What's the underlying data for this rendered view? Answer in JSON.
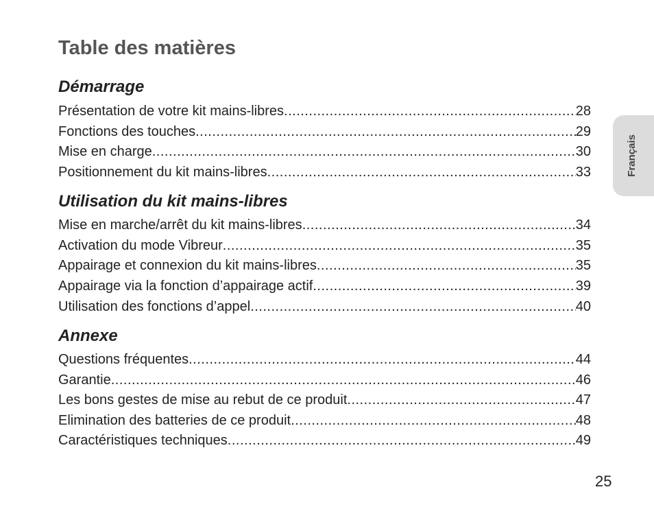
{
  "title": "Table des matières",
  "side_tab": "Français",
  "page_number": "25",
  "sections": [
    {
      "heading": "Démarrage",
      "entries": [
        {
          "label": "Présentation de votre kit mains-libres",
          "page": "28"
        },
        {
          "label": "Fonctions des touches",
          "page": "29"
        },
        {
          "label": "Mise en charge",
          "page": "30"
        },
        {
          "label": "Positionnement du kit mains-libres",
          "page": "33"
        }
      ]
    },
    {
      "heading": "Utilisation du kit mains-libres",
      "entries": [
        {
          "label": "Mise en marche/arrêt du kit mains-libres",
          "page": "34"
        },
        {
          "label": "Activation du mode Vibreur",
          "page": "35"
        },
        {
          "label": "Appairage et connexion du kit mains-libres",
          "page": "35"
        },
        {
          "label": "Appairage via la fonction d’appairage actif",
          "page": "39"
        },
        {
          "label": "Utilisation des fonctions d’appel",
          "page": "40"
        }
      ]
    },
    {
      "heading": "Annexe",
      "entries": [
        {
          "label": "Questions fréquentes",
          "page": "44"
        },
        {
          "label": "Garantie",
          "page": "46"
        },
        {
          "label": "Les bons gestes de mise au rebut de ce produit",
          "page": "47"
        },
        {
          "label": "Elimination des batteries de ce produit",
          "page": "48"
        },
        {
          "label": "Caractéristiques techniques",
          "page": "49"
        }
      ]
    }
  ]
}
